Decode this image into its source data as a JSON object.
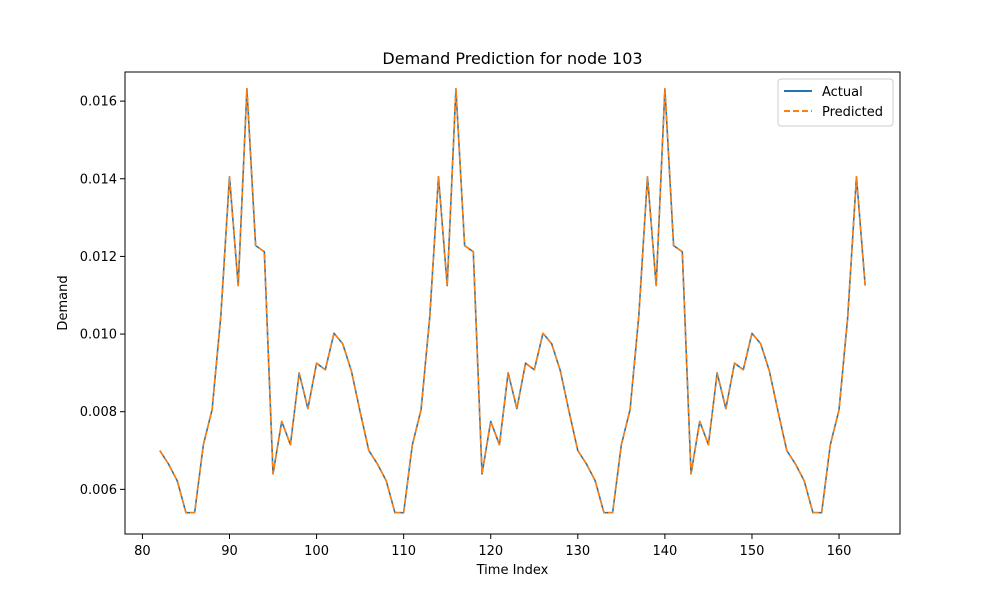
{
  "chart_data": {
    "type": "line",
    "title": "Demand Prediction for node 103",
    "xlabel": "Time Index",
    "ylabel": "Demand",
    "xlim": [
      78,
      167
    ],
    "ylim": [
      0.00485,
      0.01675
    ],
    "xticks": [
      80,
      90,
      100,
      110,
      120,
      130,
      140,
      150,
      160
    ],
    "yticks": [
      0.006,
      0.008,
      0.01,
      0.012,
      0.014,
      0.016
    ],
    "ytick_labels": [
      "0.006",
      "0.008",
      "0.010",
      "0.012",
      "0.014",
      "0.016"
    ],
    "grid": false,
    "legend": "top-right",
    "x_start": 82,
    "series": [
      {
        "name": "Actual",
        "color": "#1f77b4",
        "style": "solid",
        "values": [
          0.007,
          0.00665,
          0.00622,
          0.0054,
          0.0054,
          0.00715,
          0.00805,
          0.01045,
          0.01405,
          0.01125,
          0.01632,
          0.01228,
          0.01212,
          0.0064,
          0.00775,
          0.00715,
          0.009,
          0.00808,
          0.00925,
          0.00908,
          0.01002,
          0.00975,
          0.00905,
          0.008,
          0.007,
          0.00665,
          0.00622,
          0.0054,
          0.0054,
          0.00715,
          0.00805,
          0.01045,
          0.01405,
          0.01125,
          0.01632,
          0.01228,
          0.01212,
          0.0064,
          0.00775,
          0.00715,
          0.009,
          0.00808,
          0.00925,
          0.00908,
          0.01002,
          0.00975,
          0.00905,
          0.008,
          0.007,
          0.00665,
          0.00622,
          0.0054,
          0.0054,
          0.00715,
          0.00805,
          0.01045,
          0.01405,
          0.01125,
          0.01632,
          0.01228,
          0.01212,
          0.0064,
          0.00775,
          0.00715,
          0.009,
          0.00808,
          0.00925,
          0.00908,
          0.01002,
          0.00975,
          0.00905,
          0.008,
          0.007,
          0.00665,
          0.00622,
          0.0054,
          0.0054,
          0.00715,
          0.00805,
          0.01045,
          0.01405,
          0.01125
        ]
      },
      {
        "name": "Predicted",
        "color": "#ff7f0e",
        "style": "dashed",
        "values": [
          0.007,
          0.00665,
          0.00622,
          0.0054,
          0.0054,
          0.00715,
          0.00805,
          0.01045,
          0.01405,
          0.01125,
          0.01632,
          0.01228,
          0.01212,
          0.0064,
          0.00775,
          0.00715,
          0.009,
          0.00808,
          0.00925,
          0.00908,
          0.01002,
          0.00975,
          0.00905,
          0.008,
          0.007,
          0.00665,
          0.00622,
          0.0054,
          0.0054,
          0.00715,
          0.00805,
          0.01045,
          0.01405,
          0.01125,
          0.01632,
          0.01228,
          0.01212,
          0.0064,
          0.00775,
          0.00715,
          0.009,
          0.00808,
          0.00925,
          0.00908,
          0.01002,
          0.00975,
          0.00905,
          0.008,
          0.007,
          0.00665,
          0.00622,
          0.0054,
          0.0054,
          0.00715,
          0.00805,
          0.01045,
          0.01405,
          0.01125,
          0.01632,
          0.01228,
          0.01212,
          0.0064,
          0.00775,
          0.00715,
          0.009,
          0.00808,
          0.00925,
          0.00908,
          0.01002,
          0.00975,
          0.00905,
          0.008,
          0.007,
          0.00665,
          0.00622,
          0.0054,
          0.0054,
          0.00715,
          0.00805,
          0.01045,
          0.01405,
          0.01125
        ]
      }
    ]
  }
}
